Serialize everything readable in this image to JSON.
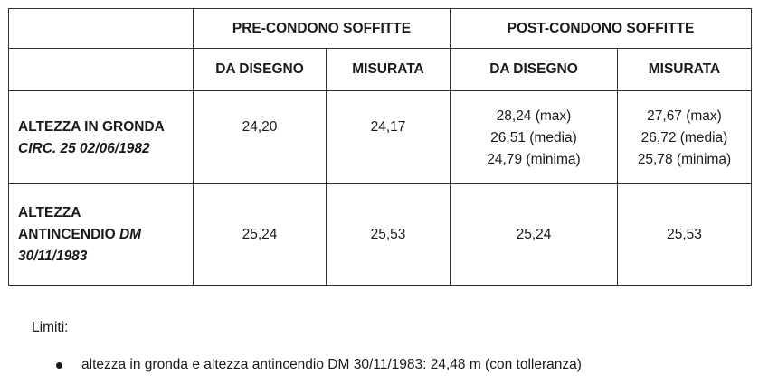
{
  "table": {
    "header_groups": [
      "PRE-CONDONO SOFFITTE",
      "POST-CONDONO SOFFITTE"
    ],
    "subheaders": [
      "DA DISEGNO",
      "MISURATA",
      "DA DISEGNO",
      "MISURATA"
    ],
    "rows": [
      {
        "label": "ALTEZZA IN GRONDA",
        "label_detail": "CIRC. 25 02/06/1982",
        "cells": [
          [
            "24,20"
          ],
          [
            "24,17"
          ],
          [
            "28,24 (max)",
            "26,51 (media)",
            "24,79 (minima)"
          ],
          [
            "27,67 (max)",
            "26,72 (media)",
            "25,78 (minima)"
          ]
        ]
      },
      {
        "label": "ALTEZZA ANTINCENDIO",
        "label_detail": "DM 30/11/1983",
        "cells": [
          [
            "25,24"
          ],
          [
            "25,53"
          ],
          [
            "25,24"
          ],
          [
            "25,53"
          ]
        ]
      }
    ]
  },
  "notes": {
    "title": "Limiti:",
    "items": [
      "altezza in gronda e altezza antincendio DM 30/11/1983: 24,48 m (con tolleranza)"
    ]
  }
}
